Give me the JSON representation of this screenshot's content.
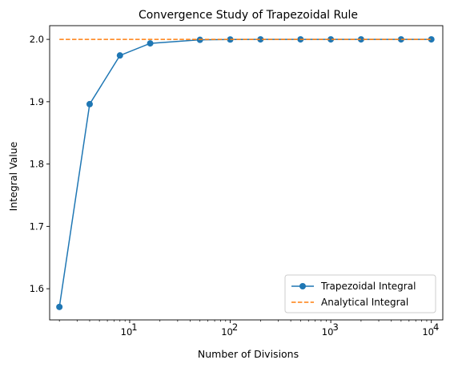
{
  "chart_data": {
    "type": "line",
    "title": "Convergence Study of Trapezoidal Rule",
    "xlabel": "Number of Divisions",
    "ylabel": "Integral Value",
    "xscale": "log",
    "xlim": [
      1.6,
      13000
    ],
    "ylim": [
      1.55,
      2.022
    ],
    "xticks": [
      {
        "value": 10,
        "base": "10",
        "exp": "1"
      },
      {
        "value": 100,
        "base": "10",
        "exp": "2"
      },
      {
        "value": 1000,
        "base": "10",
        "exp": "3"
      },
      {
        "value": 10000,
        "base": "10",
        "exp": "4"
      }
    ],
    "yticks": [
      {
        "value": 1.6,
        "label": "1.6"
      },
      {
        "value": 1.7,
        "label": "1.7"
      },
      {
        "value": 1.8,
        "label": "1.8"
      },
      {
        "value": 1.9,
        "label": "1.9"
      },
      {
        "value": 2.0,
        "label": "2.0"
      }
    ],
    "grid": false,
    "legend_position": "lower-right",
    "series": [
      {
        "name": "Trapezoidal Integral",
        "style": "solid-with-markers",
        "color": "#1f77b4",
        "x": [
          2,
          4,
          8,
          16,
          50,
          100,
          200,
          500,
          1000,
          2000,
          5000,
          10000
        ],
        "y": [
          1.5708,
          1.8961,
          1.9742,
          1.9936,
          1.9993,
          1.9998,
          2.0,
          2.0,
          2.0,
          2.0,
          2.0,
          2.0
        ]
      },
      {
        "name": "Analytical Integral",
        "style": "dashed",
        "color": "#ff7f0e",
        "x": [
          2,
          10000
        ],
        "y": [
          2.0,
          2.0
        ]
      }
    ]
  }
}
